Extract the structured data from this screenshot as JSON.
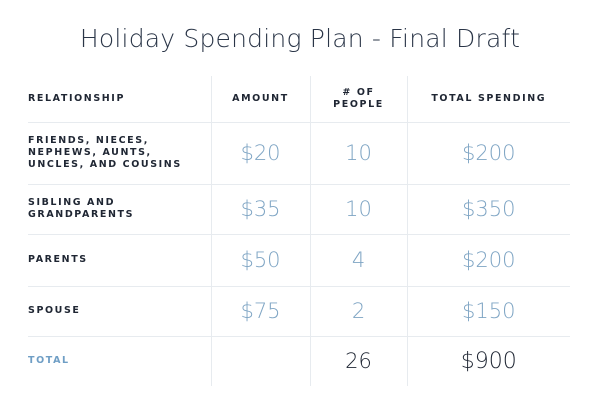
{
  "title": "Holiday Spending Plan - Final Draft",
  "table": {
    "headers": {
      "relationship": "RELATIONSHIP",
      "amount": "AMOUNT",
      "people_line1": "# OF",
      "people_line2": "PEOPLE",
      "total_spending": "TOTAL SPENDING"
    },
    "rows": [
      {
        "relationship_lines": [
          "FRIENDS, NIECES,",
          "NEPHEWS, AUNTS,",
          "UNCLES, AND COUSINS"
        ],
        "amount": "$20",
        "people": "10",
        "total": "$200"
      },
      {
        "relationship_lines": [
          "SIBLING AND",
          "GRANDPARENTS"
        ],
        "amount": "$35",
        "people": "10",
        "total": "$350"
      },
      {
        "relationship_lines": [
          "PARENTS"
        ],
        "amount": "$50",
        "people": "4",
        "total": "$200"
      },
      {
        "relationship_lines": [
          "SPOUSE"
        ],
        "amount": "$75",
        "people": "2",
        "total": "$150"
      }
    ],
    "total_row": {
      "label": "TOTAL",
      "amount": "",
      "people": "26",
      "total": "$900"
    }
  },
  "colors": {
    "title_text": "#2a3547",
    "header_text": "#1f2633",
    "value_text": "#7fa5c4",
    "total_label": "#6f9ec5",
    "grid_lines": "#e7ebef"
  }
}
